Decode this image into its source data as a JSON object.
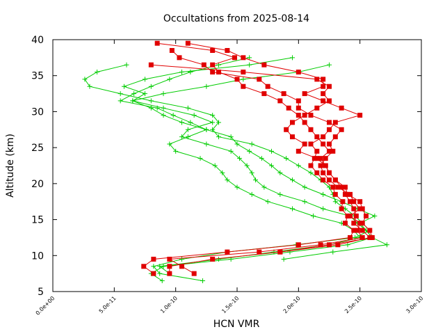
{
  "chart_data": {
    "type": "line",
    "title": "Occultations from 2025-08-14",
    "xlabel": "HCN VMR",
    "ylabel": "Altitude (km)",
    "xlim": [
      0,
      3e-10
    ],
    "ylim": [
      5,
      40
    ],
    "x_ticks": [
      0,
      5e-11,
      1e-10,
      1.5e-10,
      2e-10,
      2.5e-10,
      3e-10
    ],
    "x_tick_labels": [
      "0.0e+00",
      "5.0e-11",
      "1.0e-10",
      "1.5e-10",
      "2.0e-10",
      "2.5e-10",
      "3.0e-10"
    ],
    "y_ticks": [
      5,
      10,
      15,
      20,
      25,
      30,
      35,
      40
    ],
    "y_tick_labels": [
      "5",
      "10",
      "15",
      "20",
      "25",
      "30",
      "35",
      "40"
    ],
    "grid": false,
    "legend": "none",
    "colors": {
      "green": "#00cc00",
      "red": "#e00000"
    },
    "series": [
      {
        "color": "#00cc00",
        "marker": "plus",
        "points": [
          [
            1.22e-10,
            6.5
          ],
          [
            8.7e-11,
            7.5
          ],
          [
            8.2e-11,
            8.5
          ],
          [
            1.05e-10,
            9.5
          ],
          [
            1.42e-10,
            10.5
          ],
          [
            1.98e-10,
            11.5
          ],
          [
            2.46e-10,
            12.5
          ],
          [
            2.58e-10,
            13.5
          ],
          [
            2.52e-10,
            14.5
          ],
          [
            2.46e-10,
            15.5
          ],
          [
            2.38e-10,
            16.5
          ],
          [
            2.3e-10,
            17.5
          ],
          [
            2.28e-10,
            18.5
          ],
          [
            2.25e-10,
            19.5
          ],
          [
            2.18e-10,
            20.5
          ],
          [
            2.1e-10,
            21.5
          ],
          [
            2e-10,
            22.5
          ],
          [
            1.9e-10,
            23.5
          ],
          [
            1.78e-10,
            24.5
          ],
          [
            1.62e-10,
            25.5
          ],
          [
            1.35e-10,
            26.5
          ],
          [
            1.3e-10,
            27.5
          ],
          [
            1.35e-10,
            28.5
          ],
          [
            1.3e-10,
            29.5
          ],
          [
            1.1e-10,
            30.5
          ],
          [
            8e-11,
            31.5
          ],
          [
            5.5e-11,
            32.5
          ],
          [
            3e-11,
            33.5
          ],
          [
            2.6e-11,
            34.5
          ],
          [
            3.6e-11,
            35.5
          ],
          [
            6e-11,
            36.5
          ]
        ]
      },
      {
        "color": "#00cc00",
        "marker": "plus",
        "points": [
          [
            8.9e-11,
            6.5
          ],
          [
            8e-11,
            7.5
          ],
          [
            9e-11,
            8.5
          ],
          [
            1.45e-10,
            9.5
          ],
          [
            1.93e-10,
            10.5
          ],
          [
            2.4e-10,
            11.5
          ],
          [
            2.6e-10,
            12.5
          ],
          [
            2.55e-10,
            13.5
          ],
          [
            2.48e-10,
            14.5
          ],
          [
            2.42e-10,
            15.5
          ],
          [
            2.2e-10,
            16.5
          ],
          [
            2.05e-10,
            17.5
          ],
          [
            1.85e-10,
            18.5
          ],
          [
            1.72e-10,
            19.5
          ],
          [
            1.65e-10,
            20.5
          ],
          [
            1.62e-10,
            21.5
          ],
          [
            1.58e-10,
            22.5
          ],
          [
            1.52e-10,
            23.5
          ],
          [
            1.45e-10,
            24.5
          ],
          [
            1.25e-10,
            25.5
          ],
          [
            1.05e-10,
            26.5
          ],
          [
            1.1e-10,
            27.5
          ],
          [
            1.3e-10,
            28.5
          ],
          [
            1.15e-10,
            29.5
          ],
          [
            9e-11,
            30.5
          ],
          [
            6.5e-11,
            31.5
          ],
          [
            7.5e-11,
            32.5
          ],
          [
            5.8e-11,
            33.5
          ],
          [
            7.5e-11,
            34.5
          ],
          [
            1.05e-10,
            35.5
          ],
          [
            1.6e-10,
            36.5
          ],
          [
            1.95e-10,
            37.5
          ]
        ]
      },
      {
        "color": "#00cc00",
        "marker": "plus",
        "points": [
          [
            9.5e-11,
            7.5
          ],
          [
            8.7e-11,
            8.5
          ],
          [
            1.35e-10,
            9.5
          ],
          [
            1.8e-10,
            10.5
          ],
          [
            2.25e-10,
            11.5
          ],
          [
            2.5e-10,
            12.5
          ],
          [
            2.45e-10,
            13.5
          ],
          [
            2.35e-10,
            14.5
          ],
          [
            2.12e-10,
            15.5
          ],
          [
            1.95e-10,
            16.5
          ],
          [
            1.75e-10,
            17.5
          ],
          [
            1.62e-10,
            18.5
          ],
          [
            1.5e-10,
            19.5
          ],
          [
            1.42e-10,
            20.5
          ],
          [
            1.38e-10,
            21.5
          ],
          [
            1.32e-10,
            22.5
          ],
          [
            1.2e-10,
            23.5
          ],
          [
            1e-10,
            24.5
          ],
          [
            9.5e-11,
            25.5
          ],
          [
            1.1e-10,
            26.5
          ],
          [
            1.25e-10,
            27.5
          ],
          [
            1.12e-10,
            28.5
          ],
          [
            9.8e-11,
            29.5
          ],
          [
            8.5e-11,
            30.5
          ],
          [
            5.5e-11,
            31.5
          ],
          [
            6.6e-11,
            32.5
          ],
          [
            8e-11,
            33.5
          ],
          [
            9.5e-11,
            34.5
          ],
          [
            1.12e-10,
            35.5
          ],
          [
            1.35e-10,
            36.5
          ],
          [
            1.6e-10,
            37.5
          ]
        ]
      },
      {
        "color": "#00cc00",
        "marker": "plus",
        "points": [
          [
            1.88e-10,
            9.5
          ],
          [
            2.28e-10,
            10.5
          ],
          [
            2.72e-10,
            11.5
          ],
          [
            2.6e-10,
            12.5
          ],
          [
            2.55e-10,
            13.5
          ],
          [
            2.5e-10,
            14.5
          ],
          [
            2.62e-10,
            15.5
          ],
          [
            2.48e-10,
            16.5
          ],
          [
            2.35e-10,
            17.5
          ],
          [
            2.2e-10,
            18.5
          ],
          [
            2.05e-10,
            19.5
          ],
          [
            1.95e-10,
            20.5
          ],
          [
            1.85e-10,
            21.5
          ],
          [
            1.78e-10,
            22.5
          ],
          [
            1.7e-10,
            23.5
          ],
          [
            1.6e-10,
            24.5
          ],
          [
            1.5e-10,
            25.5
          ],
          [
            1.45e-10,
            26.5
          ],
          [
            1.25e-10,
            27.5
          ],
          [
            1.05e-10,
            28.5
          ],
          [
            9e-11,
            29.5
          ],
          [
            8e-11,
            30.5
          ],
          [
            6.5e-11,
            31.5
          ],
          [
            9e-11,
            32.5
          ],
          [
            1.25e-10,
            33.5
          ],
          [
            1.55e-10,
            34.5
          ],
          [
            2e-10,
            35.5
          ],
          [
            2.25e-10,
            36.5
          ]
        ]
      },
      {
        "color": "#e00000",
        "marker": "square",
        "points": [
          [
            8.2e-11,
            7.5
          ],
          [
            7.4e-11,
            8.5
          ],
          [
            8.2e-11,
            9.5
          ],
          [
            1.42e-10,
            10.5
          ],
          [
            2e-10,
            11.5
          ],
          [
            2.42e-10,
            12.5
          ],
          [
            2.45e-10,
            13.5
          ],
          [
            2.38e-10,
            14.5
          ],
          [
            2.4e-10,
            15.5
          ],
          [
            2.35e-10,
            16.5
          ],
          [
            2.36e-10,
            17.5
          ],
          [
            2.3e-10,
            18.5
          ],
          [
            2.28e-10,
            19.5
          ],
          [
            2.2e-10,
            20.5
          ],
          [
            2.15e-10,
            21.5
          ],
          [
            2.1e-10,
            22.5
          ],
          [
            2.13e-10,
            23.5
          ],
          [
            2.15e-10,
            24.5
          ],
          [
            2.1e-10,
            25.5
          ],
          [
            2.2e-10,
            26.5
          ],
          [
            2.25e-10,
            27.5
          ],
          [
            2.3e-10,
            28.5
          ],
          [
            2.5e-10,
            29.5
          ],
          [
            2.35e-10,
            30.5
          ],
          [
            2.2e-10,
            31.5
          ],
          [
            2.05e-10,
            32.5
          ],
          [
            2.2e-10,
            33.5
          ],
          [
            2.2e-10,
            34.5
          ],
          [
            2e-10,
            35.5
          ],
          [
            1.72e-10,
            36.5
          ],
          [
            1.55e-10,
            37.5
          ],
          [
            1.42e-10,
            38.5
          ],
          [
            1.1e-10,
            39.5
          ]
        ]
      },
      {
        "color": "#e00000",
        "marker": "square",
        "points": [
          [
            9.5e-11,
            7.5
          ],
          [
            9.5e-11,
            8.5
          ],
          [
            1.3e-10,
            9.5
          ],
          [
            1.85e-10,
            10.5
          ],
          [
            2.32e-10,
            11.5
          ],
          [
            2.58e-10,
            12.5
          ],
          [
            2.52e-10,
            13.5
          ],
          [
            2.45e-10,
            14.5
          ],
          [
            2.47e-10,
            15.5
          ],
          [
            2.45e-10,
            16.5
          ],
          [
            2.42e-10,
            17.5
          ],
          [
            2.38e-10,
            18.5
          ],
          [
            2.35e-10,
            19.5
          ],
          [
            2.3e-10,
            20.5
          ],
          [
            2.25e-10,
            21.5
          ],
          [
            2.22e-10,
            22.5
          ],
          [
            2.18e-10,
            23.5
          ],
          [
            2.25e-10,
            24.5
          ],
          [
            2.2e-10,
            25.5
          ],
          [
            2.15e-10,
            26.5
          ],
          [
            2.1e-10,
            27.5
          ],
          [
            2.05e-10,
            28.5
          ],
          [
            2e-10,
            29.5
          ],
          [
            1.92e-10,
            30.5
          ],
          [
            1.85e-10,
            31.5
          ],
          [
            1.72e-10,
            32.5
          ],
          [
            1.55e-10,
            33.5
          ],
          [
            1.5e-10,
            34.5
          ],
          [
            1.35e-10,
            35.5
          ],
          [
            1.3e-10,
            36.5
          ],
          [
            1.48e-10,
            37.5
          ],
          [
            1.3e-10,
            38.5
          ],
          [
            8.5e-11,
            39.5
          ]
        ]
      },
      {
        "color": "#e00000",
        "marker": "square",
        "points": [
          [
            1.15e-10,
            7.5
          ],
          [
            1.05e-10,
            8.5
          ],
          [
            9.5e-11,
            9.5
          ],
          [
            1.68e-10,
            10.5
          ],
          [
            2.18e-10,
            11.5
          ],
          [
            2.52e-10,
            12.5
          ],
          [
            2.48e-10,
            13.5
          ],
          [
            2.5e-10,
            14.5
          ],
          [
            2.42e-10,
            15.5
          ],
          [
            2.5e-10,
            16.5
          ],
          [
            2.45e-10,
            17.5
          ],
          [
            2.42e-10,
            18.5
          ],
          [
            2.32e-10,
            19.5
          ],
          [
            2.25e-10,
            20.5
          ],
          [
            2.2e-10,
            21.5
          ],
          [
            2.18e-10,
            22.5
          ],
          [
            2.22e-10,
            23.5
          ],
          [
            2.28e-10,
            24.5
          ],
          [
            2.25e-10,
            25.5
          ],
          [
            2.3e-10,
            26.5
          ],
          [
            2.35e-10,
            27.5
          ],
          [
            2.25e-10,
            28.5
          ],
          [
            2.1e-10,
            29.5
          ],
          [
            2e-10,
            30.5
          ],
          [
            2e-10,
            31.5
          ],
          [
            1.88e-10,
            32.5
          ],
          [
            1.75e-10,
            33.5
          ],
          [
            1.68e-10,
            34.5
          ],
          [
            1.3e-10,
            35.5
          ],
          [
            1.23e-10,
            36.5
          ],
          [
            1.03e-10,
            37.5
          ],
          [
            9.7e-11,
            38.5
          ]
        ]
      },
      {
        "color": "#e00000",
        "marker": "square",
        "points": [
          [
            1.85e-10,
            10.5
          ],
          [
            2.25e-10,
            11.5
          ],
          [
            2.6e-10,
            12.5
          ],
          [
            2.58e-10,
            13.5
          ],
          [
            2.52e-10,
            14.5
          ],
          [
            2.55e-10,
            15.5
          ],
          [
            2.52e-10,
            16.5
          ],
          [
            2.5e-10,
            17.5
          ],
          [
            2.4e-10,
            18.5
          ],
          [
            2.38e-10,
            19.5
          ],
          [
            2.3e-10,
            20.5
          ],
          [
            2.25e-10,
            21.5
          ],
          [
            2.22e-10,
            22.5
          ],
          [
            2.15e-10,
            23.5
          ],
          [
            2e-10,
            24.5
          ],
          [
            2.05e-10,
            25.5
          ],
          [
            1.95e-10,
            26.5
          ],
          [
            1.9e-10,
            27.5
          ],
          [
            1.95e-10,
            28.5
          ],
          [
            2.05e-10,
            29.5
          ],
          [
            2.15e-10,
            30.5
          ],
          [
            2.25e-10,
            31.5
          ],
          [
            2.2e-10,
            32.5
          ],
          [
            2.25e-10,
            33.5
          ],
          [
            2.15e-10,
            34.5
          ],
          [
            1.55e-10,
            35.5
          ],
          [
            8e-11,
            36.5
          ]
        ]
      }
    ]
  }
}
